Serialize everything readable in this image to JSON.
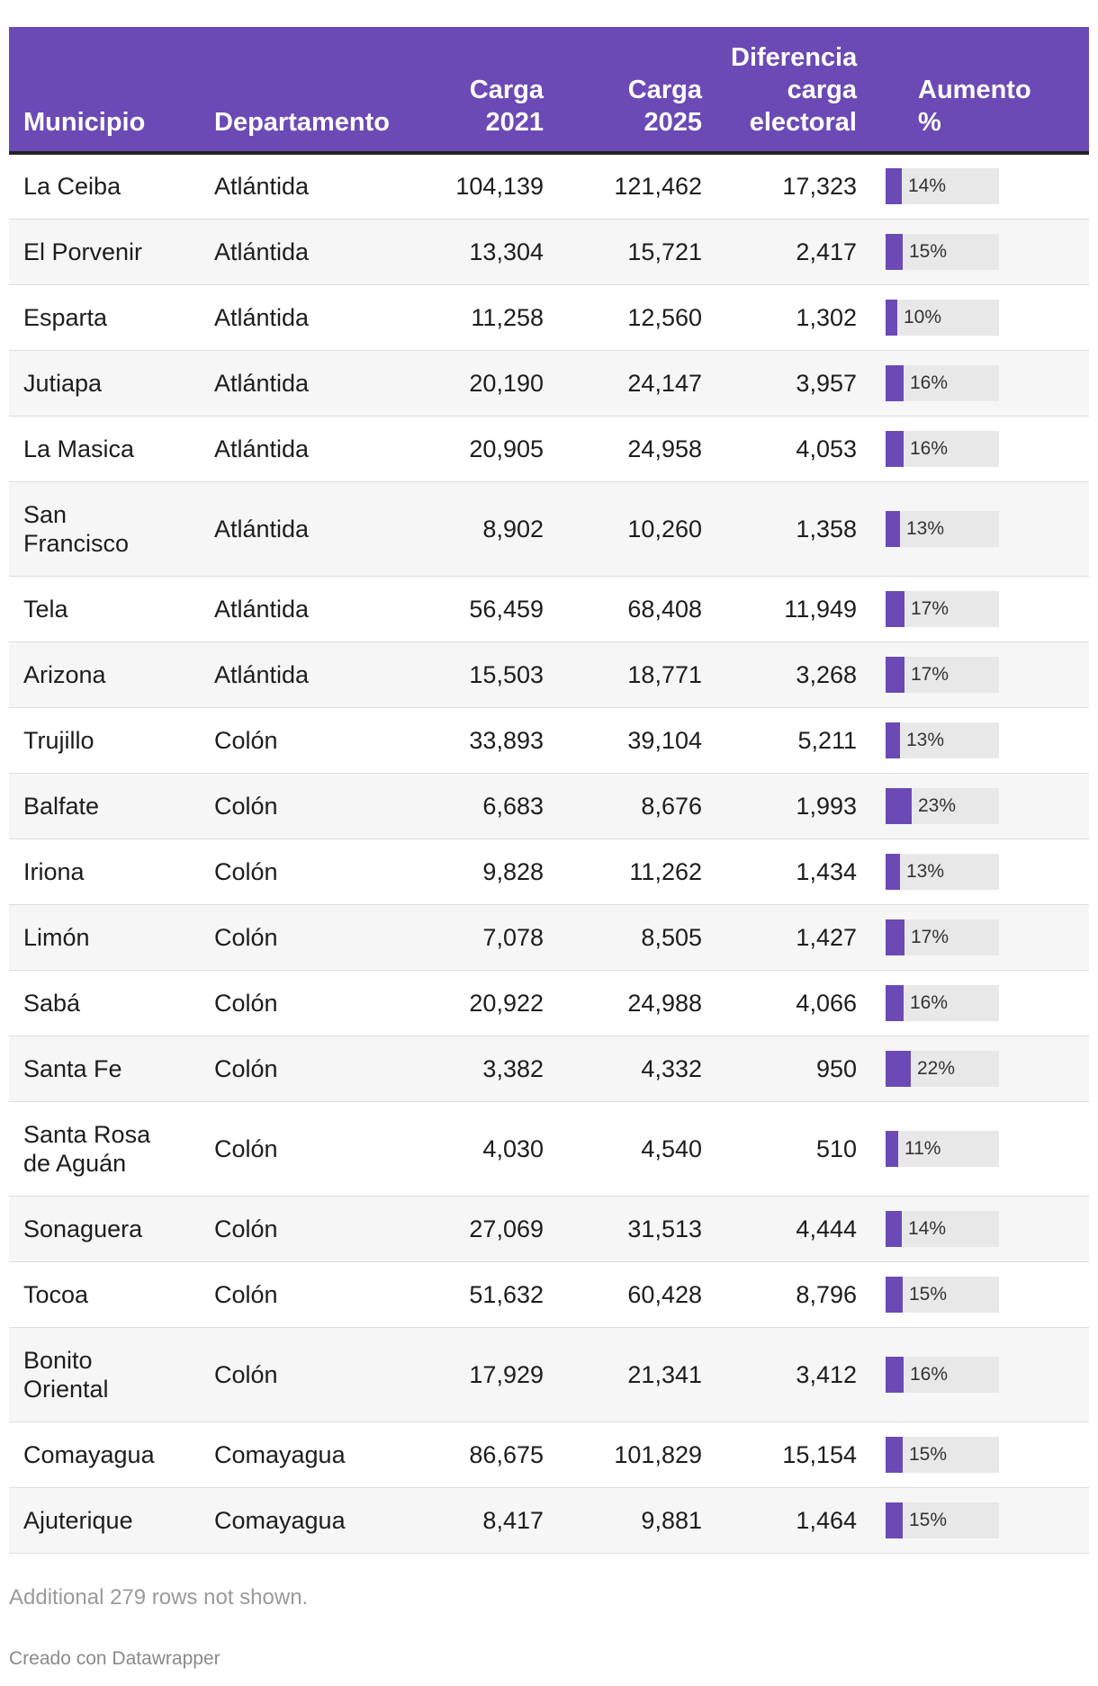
{
  "table": {
    "headers": {
      "municipio": "Municipio",
      "departamento": "Departamento",
      "carga2021": "Carga\n2021",
      "carga2025": "Carga\n2025",
      "diferencia": "Diferencia\ncarga\nelectoral",
      "aumento": "Aumento\n%"
    },
    "rows": [
      {
        "municipio": "La Ceiba",
        "departamento": "Atlántida",
        "carga2021": "104,139",
        "carga2025": "121,462",
        "diferencia": "17,323",
        "aumento": 14,
        "aumento_label": "14%"
      },
      {
        "municipio": "El Porvenir",
        "departamento": "Atlántida",
        "carga2021": "13,304",
        "carga2025": "15,721",
        "diferencia": "2,417",
        "aumento": 15,
        "aumento_label": "15%"
      },
      {
        "municipio": "Esparta",
        "departamento": "Atlántida",
        "carga2021": "11,258",
        "carga2025": "12,560",
        "diferencia": "1,302",
        "aumento": 10,
        "aumento_label": "10%"
      },
      {
        "municipio": "Jutiapa",
        "departamento": "Atlántida",
        "carga2021": "20,190",
        "carga2025": "24,147",
        "diferencia": "3,957",
        "aumento": 16,
        "aumento_label": "16%"
      },
      {
        "municipio": "La Masica",
        "departamento": "Atlántida",
        "carga2021": "20,905",
        "carga2025": "24,958",
        "diferencia": "4,053",
        "aumento": 16,
        "aumento_label": "16%"
      },
      {
        "municipio": "San\nFrancisco",
        "departamento": "Atlántida",
        "carga2021": "8,902",
        "carga2025": "10,260",
        "diferencia": "1,358",
        "aumento": 13,
        "aumento_label": "13%"
      },
      {
        "municipio": "Tela",
        "departamento": "Atlántida",
        "carga2021": "56,459",
        "carga2025": "68,408",
        "diferencia": "11,949",
        "aumento": 17,
        "aumento_label": "17%"
      },
      {
        "municipio": "Arizona",
        "departamento": "Atlántida",
        "carga2021": "15,503",
        "carga2025": "18,771",
        "diferencia": "3,268",
        "aumento": 17,
        "aumento_label": "17%"
      },
      {
        "municipio": "Trujillo",
        "departamento": "Colón",
        "carga2021": "33,893",
        "carga2025": "39,104",
        "diferencia": "5,211",
        "aumento": 13,
        "aumento_label": "13%"
      },
      {
        "municipio": "Balfate",
        "departamento": "Colón",
        "carga2021": "6,683",
        "carga2025": "8,676",
        "diferencia": "1,993",
        "aumento": 23,
        "aumento_label": "23%"
      },
      {
        "municipio": "Iriona",
        "departamento": "Colón",
        "carga2021": "9,828",
        "carga2025": "11,262",
        "diferencia": "1,434",
        "aumento": 13,
        "aumento_label": "13%"
      },
      {
        "municipio": "Limón",
        "departamento": "Colón",
        "carga2021": "7,078",
        "carga2025": "8,505",
        "diferencia": "1,427",
        "aumento": 17,
        "aumento_label": "17%"
      },
      {
        "municipio": "Sabá",
        "departamento": "Colón",
        "carga2021": "20,922",
        "carga2025": "24,988",
        "diferencia": "4,066",
        "aumento": 16,
        "aumento_label": "16%"
      },
      {
        "municipio": "Santa Fe",
        "departamento": "Colón",
        "carga2021": "3,382",
        "carga2025": "4,332",
        "diferencia": "950",
        "aumento": 22,
        "aumento_label": "22%"
      },
      {
        "municipio": "Santa Rosa\nde Aguán",
        "departamento": "Colón",
        "carga2021": "4,030",
        "carga2025": "4,540",
        "diferencia": "510",
        "aumento": 11,
        "aumento_label": "11%"
      },
      {
        "municipio": "Sonaguera",
        "departamento": "Colón",
        "carga2021": "27,069",
        "carga2025": "31,513",
        "diferencia": "4,444",
        "aumento": 14,
        "aumento_label": "14%"
      },
      {
        "municipio": "Tocoa",
        "departamento": "Colón",
        "carga2021": "51,632",
        "carga2025": "60,428",
        "diferencia": "8,796",
        "aumento": 15,
        "aumento_label": "15%"
      },
      {
        "municipio": "Bonito\nOriental",
        "departamento": "Colón",
        "carga2021": "17,929",
        "carga2025": "21,341",
        "diferencia": "3,412",
        "aumento": 16,
        "aumento_label": "16%"
      },
      {
        "municipio": "Comayagua",
        "departamento": "Comayagua",
        "carga2021": "86,675",
        "carga2025": "101,829",
        "diferencia": "15,154",
        "aumento": 15,
        "aumento_label": "15%"
      },
      {
        "municipio": "Ajuterique",
        "departamento": "Comayagua",
        "carga2021": "8,417",
        "carga2025": "9,881",
        "diferencia": "1,464",
        "aumento": 15,
        "aumento_label": "15%"
      }
    ]
  },
  "note": "Additional 279 rows not shown.",
  "credit": "Creado con Datawrapper",
  "colors": {
    "accent": "#6b4ab5",
    "track": "#e8e8e8"
  },
  "chart_data": {
    "type": "table",
    "columns": [
      "Municipio",
      "Departamento",
      "Carga 2021",
      "Carga 2025",
      "Diferencia carga electoral",
      "Aumento %"
    ],
    "bar_column": "Aumento %",
    "bar_range": [
      0,
      100
    ]
  }
}
